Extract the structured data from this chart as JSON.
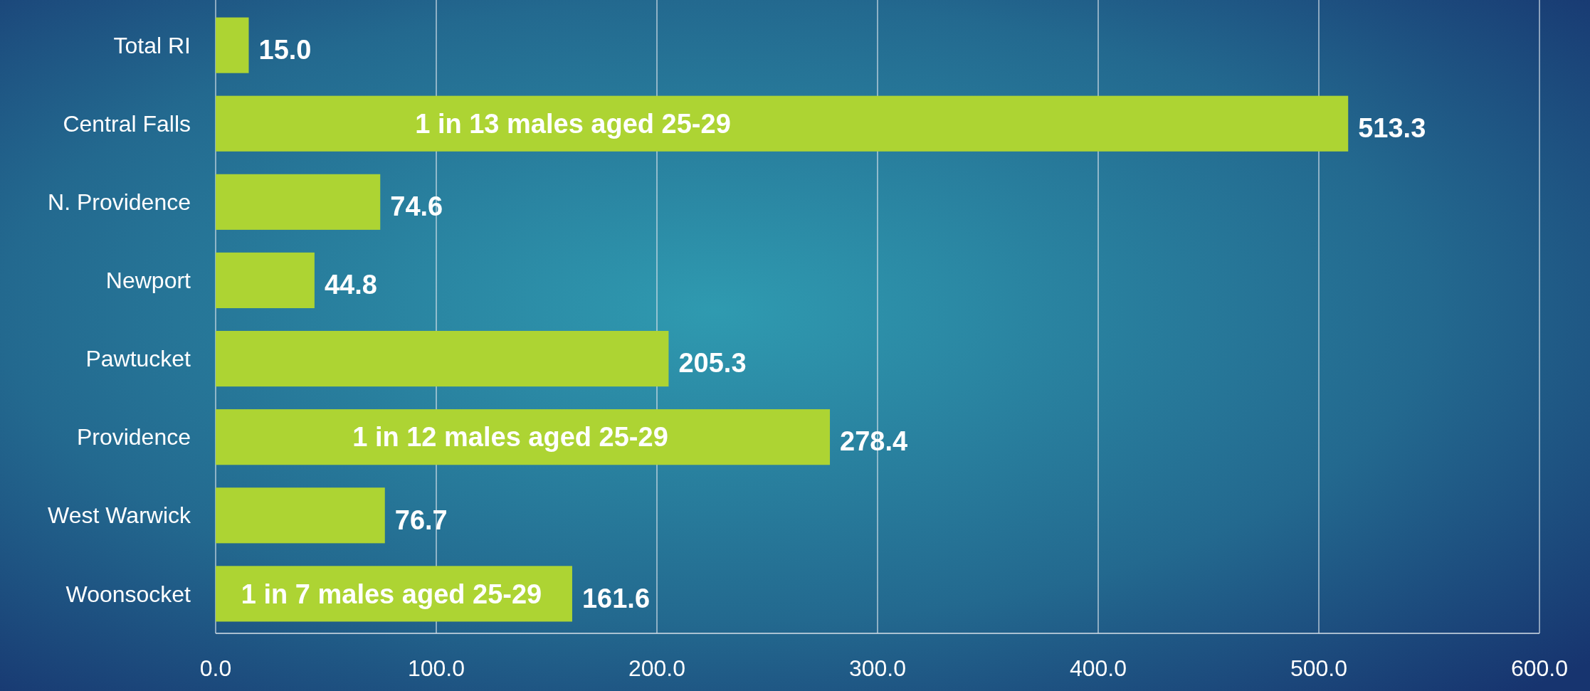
{
  "chart_data": {
    "type": "bar",
    "orientation": "horizontal",
    "categories": [
      "Total RI",
      "Central Falls",
      "N. Providence",
      "Newport",
      "Pawtucket",
      "Providence",
      "West Warwick",
      "Woonsocket"
    ],
    "values": [
      15.0,
      513.3,
      74.6,
      44.8,
      205.3,
      278.4,
      76.7,
      161.6
    ],
    "value_labels": [
      "15.0",
      "513.3",
      "74.6",
      "44.8",
      "205.3",
      "278.4",
      "76.7",
      "161.6"
    ],
    "color": "#add433",
    "xlim": [
      0,
      600
    ],
    "xticks": [
      {
        "value": 0,
        "label": "0.0"
      },
      {
        "value": 100,
        "label": "100.0"
      },
      {
        "value": 200,
        "label": "200.0"
      },
      {
        "value": 300,
        "label": "300.0"
      },
      {
        "value": 400,
        "label": "400.0"
      },
      {
        "value": 500,
        "label": "500.0"
      },
      {
        "value": 600,
        "label": "600.0"
      }
    ],
    "grid": "x",
    "annotations": [
      "1 in 13 males aged 25-29",
      "1 in 12 males aged 25-29",
      "1 in 7 males aged 25-29"
    ]
  }
}
